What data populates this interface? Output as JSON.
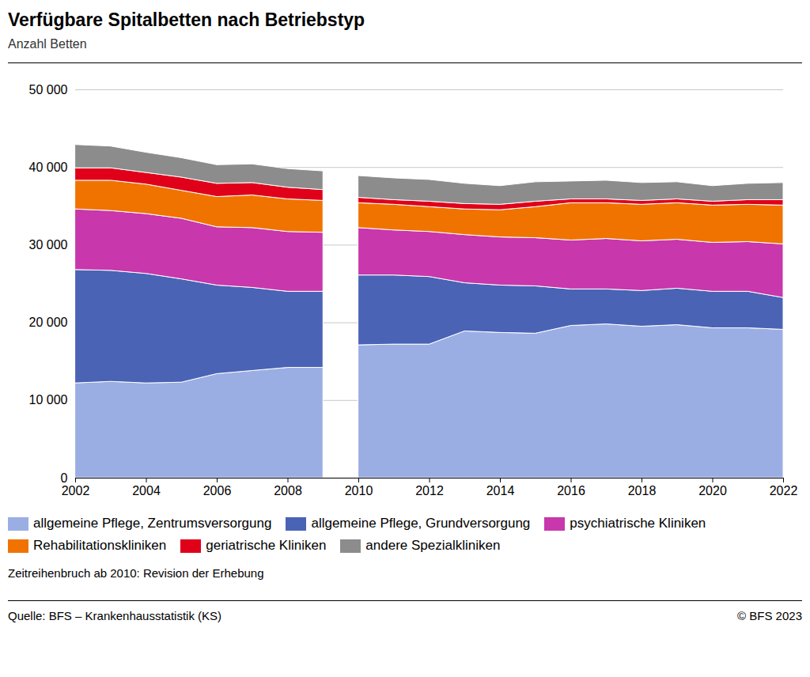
{
  "chart_data": {
    "type": "area",
    "title": "Verfügbare Spitalbetten nach Betriebstyp",
    "subtitle": "Anzahl Betten",
    "note": "Zeitreihenbruch ab 2010: Revision der Erhebung",
    "source": "Quelle: BFS – Krankenhausstatistik (KS)",
    "copyright": "© BFS 2023",
    "stacked": true,
    "grid": true,
    "legend": "bottom",
    "series_break": 2010,
    "x": [
      2002,
      2003,
      2004,
      2005,
      2006,
      2007,
      2008,
      2009,
      2010,
      2011,
      2012,
      2013,
      2014,
      2015,
      2016,
      2017,
      2018,
      2019,
      2020,
      2021,
      2022
    ],
    "xlim": [
      2002,
      2022
    ],
    "xticks": [
      2002,
      2004,
      2006,
      2008,
      2010,
      2012,
      2014,
      2016,
      2018,
      2020,
      2022
    ],
    "ylim": [
      0,
      50000
    ],
    "yticks": [
      0,
      {
        "value": 10000,
        "label": "10 000"
      },
      {
        "value": 20000,
        "label": "20 000"
      },
      {
        "value": 30000,
        "label": "30 000"
      },
      {
        "value": 40000,
        "label": "40 000"
      },
      {
        "value": 50000,
        "label": "50 000"
      }
    ],
    "series": [
      {
        "name": "allgemeine Pflege, Zentrumsversorgung",
        "color": "#9baee4",
        "values": [
          12200,
          12400,
          12200,
          12300,
          13400,
          13800,
          14200,
          14200,
          17100,
          17200,
          17200,
          18900,
          18700,
          18600,
          19600,
          19800,
          19500,
          19700,
          19300,
          19300,
          19100
        ]
      },
      {
        "name": "allgemeine Pflege, Grundversorgung",
        "color": "#4a63b5",
        "values": [
          14600,
          14300,
          14100,
          13300,
          11400,
          10700,
          9800,
          9800,
          9000,
          8900,
          8700,
          6200,
          6100,
          6100,
          4700,
          4500,
          4600,
          4700,
          4700,
          4700,
          4100
        ]
      },
      {
        "name": "psychiatrische Kliniken",
        "color": "#c837ab",
        "values": [
          7800,
          7700,
          7700,
          7800,
          7500,
          7700,
          7700,
          7600,
          6100,
          5800,
          5800,
          6200,
          6200,
          6200,
          6300,
          6500,
          6400,
          6300,
          6300,
          6400,
          6900
        ]
      },
      {
        "name": "Rehabilitationskliniken",
        "color": "#f07300",
        "values": [
          3700,
          3900,
          3800,
          3600,
          3900,
          4200,
          4200,
          4100,
          3200,
          3300,
          3200,
          3300,
          3500,
          4000,
          4800,
          4600,
          4700,
          4700,
          4800,
          4800,
          5000
        ]
      },
      {
        "name": "geriatrische Kliniken",
        "color": "#e0001a",
        "values": [
          1600,
          1600,
          1500,
          1700,
          1700,
          1600,
          1500,
          1400,
          700,
          600,
          700,
          700,
          700,
          700,
          500,
          500,
          500,
          500,
          500,
          600,
          700
        ]
      },
      {
        "name": "andere Spezialkliniken",
        "color": "#8c8c8c",
        "values": [
          3000,
          2800,
          2600,
          2500,
          2400,
          2400,
          2400,
          2400,
          2800,
          2800,
          2800,
          2600,
          2400,
          2500,
          2300,
          2400,
          2300,
          2200,
          2000,
          2100,
          2200
        ]
      }
    ]
  }
}
